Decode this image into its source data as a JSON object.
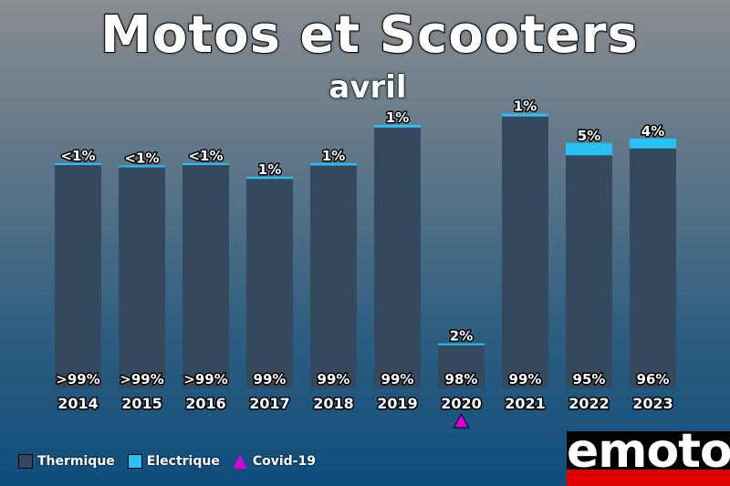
{
  "title": "Motos et Scooters",
  "subtitle": "avril",
  "legend": {
    "thermique": "Thermique",
    "electrique": "Electrique",
    "covid": "Covid-19"
  },
  "colors": {
    "thermique": "#34495e",
    "electrique": "#29c0f4",
    "covid": "#d800d8"
  },
  "logo": {
    "text": "emoto"
  },
  "chart_data": {
    "type": "bar",
    "stacked": true,
    "categories": [
      "2014",
      "2015",
      "2016",
      "2017",
      "2018",
      "2019",
      "2020",
      "2021",
      "2022",
      "2023"
    ],
    "total_relative": [
      100,
      99,
      100,
      94,
      100,
      117,
      20,
      122,
      109,
      111
    ],
    "series": [
      {
        "name": "Thermique",
        "labels": [
          ">99%",
          ">99%",
          ">99%",
          "99%",
          "99%",
          "99%",
          "98%",
          "99%",
          "95%",
          "96%"
        ],
        "share": [
          99.7,
          99.7,
          99.7,
          99,
          99,
          99,
          98,
          99,
          95,
          96
        ]
      },
      {
        "name": "Electrique",
        "labels": [
          "<1%",
          "<1%",
          "<1%",
          "1%",
          "1%",
          "1%",
          "2%",
          "1%",
          "5%",
          "4%"
        ],
        "share": [
          0.3,
          0.3,
          0.3,
          1,
          1,
          1,
          2,
          1,
          5,
          4
        ]
      }
    ],
    "annotations": [
      {
        "category": "2020",
        "marker": "triangle",
        "label": "Covid-19"
      }
    ]
  }
}
